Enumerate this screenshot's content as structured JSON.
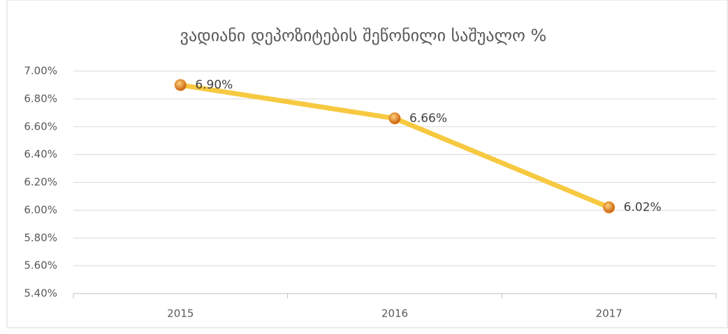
{
  "chart_data": {
    "type": "line",
    "title": "ვადიანი დეპოზიტების შეწონილი საშუალო %",
    "categories": [
      "2015",
      "2016",
      "2017"
    ],
    "series": [
      {
        "name": "ვადიანი დეპოზიტების შეწონილი საშუალო %",
        "color": "#f7c940",
        "marker_color": "#e8821e",
        "values": [
          6.9,
          6.66,
          6.02
        ],
        "value_labels": [
          "6.90%",
          "6.66%",
          "6.02%"
        ]
      }
    ],
    "ylim": [
      5.4,
      7.0
    ],
    "yticks": [
      {
        "value": 5.4,
        "label": "5.40%"
      },
      {
        "value": 5.6,
        "label": "5.60%"
      },
      {
        "value": 5.8,
        "label": "5.80%"
      },
      {
        "value": 6.0,
        "label": "6.00%"
      },
      {
        "value": 6.2,
        "label": "6.20%"
      },
      {
        "value": 6.4,
        "label": "6.40%"
      },
      {
        "value": 6.6,
        "label": "6.60%"
      },
      {
        "value": 6.8,
        "label": "6.80%"
      },
      {
        "value": 7.0,
        "label": "7.00%"
      }
    ],
    "grid": true
  }
}
